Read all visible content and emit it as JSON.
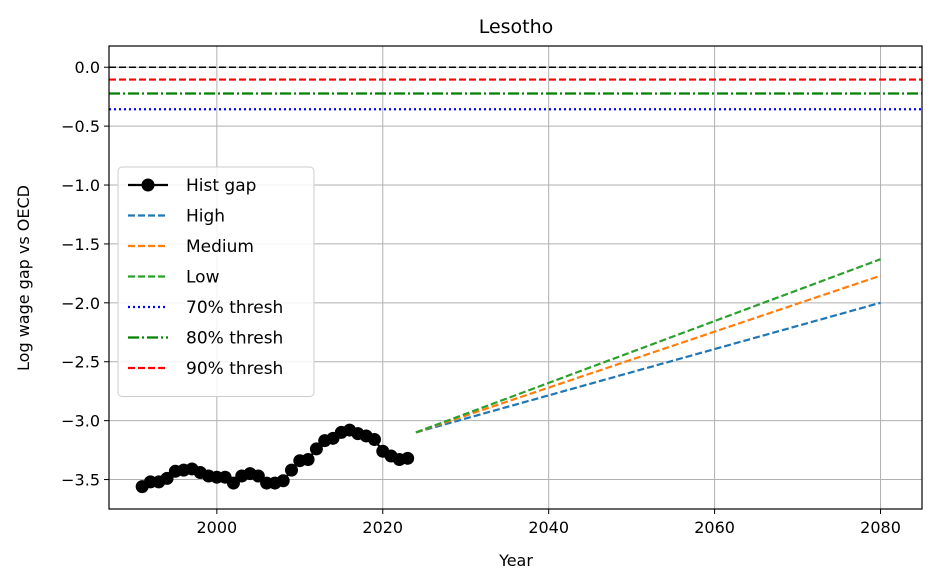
{
  "chart_data": {
    "type": "line",
    "title": "Lesotho",
    "xlabel": "Year",
    "ylabel": "Log wage gap vs OECD",
    "xlim": [
      1987,
      2085
    ],
    "ylim": [
      -3.75,
      0.18
    ],
    "xticks": [
      2000,
      2020,
      2040,
      2060,
      2080
    ],
    "yticks": [
      0.0,
      -0.5,
      -1.0,
      -1.5,
      -2.0,
      -2.5,
      -3.0,
      -3.5
    ],
    "ytick_labels": [
      "0.0",
      "−0.5",
      "−1.0",
      "−1.5",
      "−2.0",
      "−2.5",
      "−3.0",
      "−3.5"
    ],
    "grid": true,
    "legend_position": "center-left",
    "reference_lines": [
      {
        "y": 0.0,
        "color": "#000000",
        "style": "dashed"
      }
    ],
    "series": [
      {
        "name": "Hist gap",
        "color": "#000000",
        "style": "solid",
        "marker": "circle",
        "x": [
          1991,
          1992,
          1993,
          1994,
          1995,
          1996,
          1997,
          1998,
          1999,
          2000,
          2001,
          2002,
          2003,
          2004,
          2005,
          2006,
          2007,
          2008,
          2009,
          2010,
          2011,
          2012,
          2013,
          2014,
          2015,
          2016,
          2017,
          2018,
          2019,
          2020,
          2021,
          2022,
          2023
        ],
        "y": [
          -3.56,
          -3.52,
          -3.52,
          -3.49,
          -3.43,
          -3.42,
          -3.41,
          -3.44,
          -3.47,
          -3.48,
          -3.48,
          -3.53,
          -3.47,
          -3.45,
          -3.47,
          -3.53,
          -3.53,
          -3.51,
          -3.42,
          -3.34,
          -3.33,
          -3.24,
          -3.17,
          -3.15,
          -3.1,
          -3.08,
          -3.11,
          -3.13,
          -3.16,
          -3.26,
          -3.3,
          -3.33,
          -3.32
        ]
      },
      {
        "name": "High",
        "color": "#1f77b4",
        "style": "dashed",
        "x": [
          2024,
          2080
        ],
        "y": [
          -3.1,
          -2.0
        ]
      },
      {
        "name": "Medium",
        "color": "#ff7f0e",
        "style": "dashed",
        "x": [
          2024,
          2080
        ],
        "y": [
          -3.1,
          -1.77
        ]
      },
      {
        "name": "Low",
        "color": "#2ca02c",
        "style": "dashed",
        "x": [
          2024,
          2080
        ],
        "y": [
          -3.1,
          -1.63
        ]
      },
      {
        "name": "70% thresh",
        "color": "#0000ff",
        "style": "dotted",
        "y_const": -0.357
      },
      {
        "name": "80% thresh",
        "color": "#008000",
        "style": "dashdot",
        "y_const": -0.223
      },
      {
        "name": "90% thresh",
        "color": "#ff0000",
        "style": "dashed",
        "y_const": -0.105
      }
    ]
  }
}
